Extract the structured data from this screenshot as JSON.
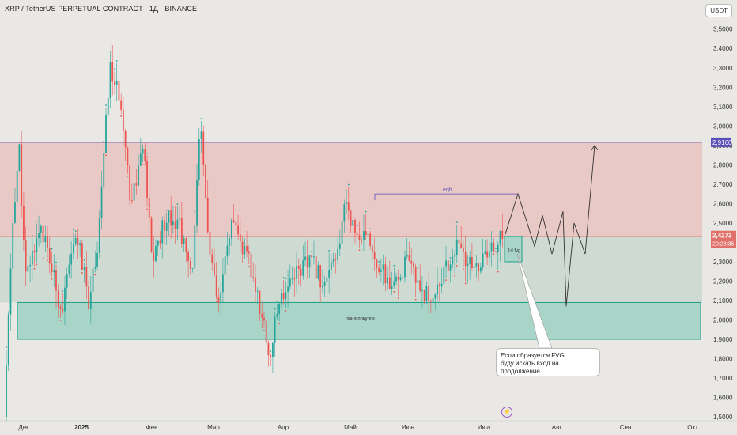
{
  "header": {
    "title": "XRP / TetherUS PERPETUAL CONTRACT · 1Д · BINANCE",
    "currency_button": "USDT"
  },
  "colors": {
    "background": "#e9e8e4",
    "bull": "#26a69a",
    "bear": "#ef5350",
    "resistance_zone": "#e8c9c6",
    "support_mid_zone": "#ccd8d0",
    "buy_zone": "#a9d5c9",
    "buy_zone_border": "#1e9e86",
    "upper_line": "#5b4db8",
    "price_label": "#e0706a"
  },
  "icons": [
    "lightning-icon"
  ],
  "chart_data": {
    "type": "candlestick",
    "timeframe": "1Д",
    "x_labels": [
      "Дек",
      "2025",
      "Фев",
      "Мар",
      "Апр",
      "Май",
      "Июн",
      "Июл",
      "Авг",
      "Сен",
      "Окт"
    ],
    "y_ticks": [
      "3,5000",
      "3,4000",
      "3,3000",
      "3,2000",
      "3,1000",
      "3,0000",
      "2,9000",
      "2,8000",
      "2,7000",
      "2,6000",
      "2,5000",
      "2,4000",
      "2,3000",
      "2,2000",
      "2,1000",
      "2,0000",
      "1,9000",
      "1,8000",
      "1,7000",
      "1,6000",
      "1,5000"
    ],
    "ylim": [
      1.48,
      3.56
    ],
    "grid": false,
    "monthly_path": [
      {
        "label": "Дек",
        "o": 1.5,
        "h": 2.91,
        "l": 1.48,
        "c": 2.1
      },
      {
        "label": "2025",
        "o": 2.1,
        "h": 2.5,
        "l": 1.88,
        "c": 2.05
      },
      {
        "label": "2025",
        "o": 2.05,
        "h": 3.43,
        "l": 2.0,
        "c": 3.1
      },
      {
        "label": "Фев",
        "o": 3.1,
        "h": 3.2,
        "l": 1.75,
        "c": 2.2
      },
      {
        "label": "Мар",
        "o": 2.2,
        "h": 3.05,
        "l": 1.88,
        "c": 2.35
      },
      {
        "label": "Апр",
        "o": 2.35,
        "h": 2.5,
        "l": 1.6,
        "c": 2.05
      },
      {
        "label": "Май",
        "o": 2.05,
        "h": 2.66,
        "l": 2.05,
        "c": 2.35
      },
      {
        "label": "Июн",
        "o": 2.35,
        "h": 2.4,
        "l": 1.9,
        "c": 2.1
      },
      {
        "label": "Июл",
        "o": 2.1,
        "h": 2.45,
        "l": 2.08,
        "c": 2.4273
      }
    ],
    "levels": {
      "upper_line": 2.916,
      "current_price": 2.4273,
      "resistance_zone": [
        2.4273,
        2.916
      ],
      "buy_zone": [
        1.9,
        2.09
      ],
      "eqh": 2.65
    },
    "price_label": "2,4273",
    "countdown": "20:23:35",
    "upper_label": "2,9160",
    "annotations": {
      "eqh": "eqh",
      "fvg": "1d fvg",
      "buy_zone": "зона покупок",
      "note_line1": "Если образуется FVG",
      "note_line2": "буду искать вход на продолжение"
    },
    "projection": [
      {
        "date": "Июл+1",
        "y": 2.43
      },
      {
        "date": "Июл+5",
        "y": 2.65
      },
      {
        "date": "Июл+9",
        "y": 2.38
      },
      {
        "date": "Июл+13",
        "y": 2.54
      },
      {
        "date": "Июл+17",
        "y": 2.34
      },
      {
        "date": "Июл+22",
        "y": 2.56
      },
      {
        "date": "Авг-2",
        "y": 2.07
      },
      {
        "date": "Авг+1",
        "y": 2.5
      },
      {
        "date": "Авг+6",
        "y": 2.34
      },
      {
        "date": "Авг+12",
        "y": 2.9
      }
    ]
  }
}
